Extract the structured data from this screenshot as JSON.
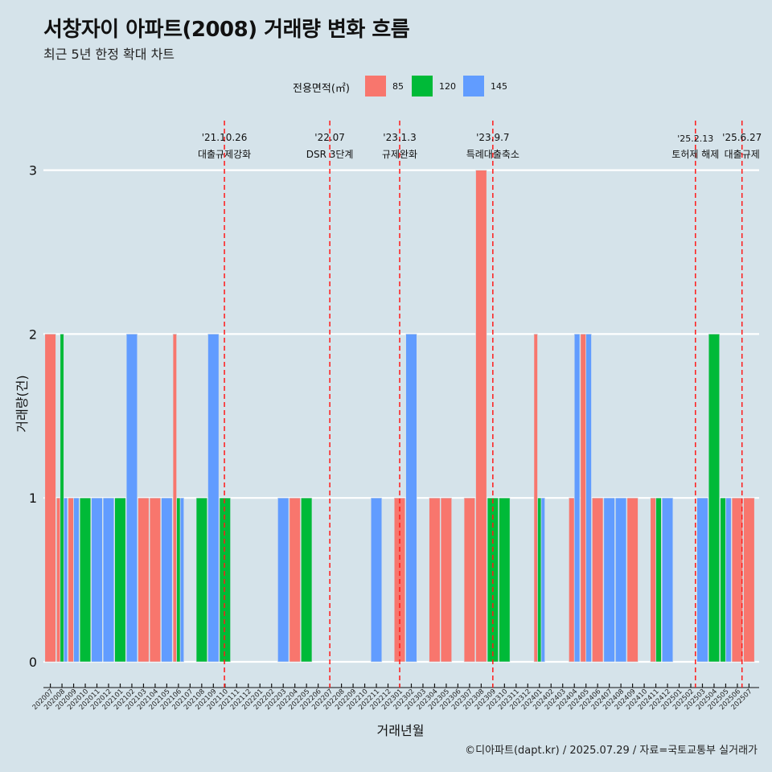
{
  "title": "서창자이 아파트(2008) 거래량 변화 흐름",
  "subtitle": "최근 5년 한정 확대 차트",
  "caption": "©디아파트(dapt.kr) / 2025.07.29 / 자료=국토교통부 실거래가",
  "legend": {
    "title": "전용면적(㎡)",
    "items": [
      {
        "label": "85",
        "color": "#f8766d"
      },
      {
        "label": "120",
        "color": "#00ba38"
      },
      {
        "label": "145",
        "color": "#619cff"
      }
    ]
  },
  "chart_data": {
    "type": "bar",
    "xlabel": "거래년월",
    "ylabel": "거래량(건)",
    "ylim": [
      0,
      3
    ],
    "yticks": [
      0,
      1,
      2,
      3
    ],
    "categories": [
      "202007",
      "202008",
      "202009",
      "202010",
      "202011",
      "202012",
      "202101",
      "202102",
      "202103",
      "202104",
      "202105",
      "202106",
      "202107",
      "202108",
      "202109",
      "202110",
      "202111",
      "202112",
      "202201",
      "202202",
      "202203",
      "202204",
      "202205",
      "202206",
      "202207",
      "202208",
      "202209",
      "202210",
      "202211",
      "202212",
      "202301",
      "202302",
      "202303",
      "202304",
      "202305",
      "202306",
      "202307",
      "202308",
      "202309",
      "202310",
      "202311",
      "202312",
      "202401",
      "202402",
      "202403",
      "202404",
      "202405",
      "202406",
      "202407",
      "202408",
      "202409",
      "202410",
      "202411",
      "202412",
      "202501",
      "202502",
      "202503",
      "202504",
      "202505",
      "202506",
      "202507"
    ],
    "bars": [
      {
        "month": "202007",
        "values": [
          2,
          0,
          0
        ]
      },
      {
        "month": "202008",
        "values": [
          1,
          2,
          1
        ]
      },
      {
        "month": "202009",
        "values": [
          1,
          0,
          1
        ]
      },
      {
        "month": "202010",
        "values": [
          0,
          1,
          0
        ]
      },
      {
        "month": "202011",
        "values": [
          0,
          0,
          1
        ]
      },
      {
        "month": "202012",
        "values": [
          0,
          0,
          1
        ]
      },
      {
        "month": "202101",
        "values": [
          0,
          1,
          0
        ]
      },
      {
        "month": "202102",
        "values": [
          0,
          0,
          2
        ]
      },
      {
        "month": "202103",
        "values": [
          1,
          0,
          0
        ]
      },
      {
        "month": "202104",
        "values": [
          1,
          0,
          0
        ]
      },
      {
        "month": "202105",
        "values": [
          0,
          0,
          1
        ]
      },
      {
        "month": "202106",
        "values": [
          2,
          1,
          1
        ]
      },
      {
        "month": "202108",
        "values": [
          0,
          1,
          0
        ]
      },
      {
        "month": "202109",
        "values": [
          0,
          0,
          2
        ]
      },
      {
        "month": "202110",
        "values": [
          0,
          1,
          0
        ]
      },
      {
        "month": "202203",
        "values": [
          0,
          0,
          1
        ]
      },
      {
        "month": "202204",
        "values": [
          1,
          0,
          0
        ]
      },
      {
        "month": "202205",
        "values": [
          0,
          1,
          0
        ]
      },
      {
        "month": "202211",
        "values": [
          0,
          0,
          1
        ]
      },
      {
        "month": "202301",
        "values": [
          1,
          0,
          0
        ]
      },
      {
        "month": "202302",
        "values": [
          0,
          0,
          2
        ]
      },
      {
        "month": "202304",
        "values": [
          1,
          0,
          0
        ]
      },
      {
        "month": "202305",
        "values": [
          1,
          0,
          0
        ]
      },
      {
        "month": "202307",
        "values": [
          1,
          0,
          0
        ]
      },
      {
        "month": "202308",
        "values": [
          3,
          0,
          0
        ]
      },
      {
        "month": "202309",
        "values": [
          0,
          1,
          0
        ]
      },
      {
        "month": "202310",
        "values": [
          0,
          1,
          0
        ]
      },
      {
        "month": "202401",
        "values": [
          2,
          1,
          1
        ]
      },
      {
        "month": "202404",
        "values": [
          1,
          0,
          2
        ]
      },
      {
        "month": "202405",
        "values": [
          2,
          0,
          2
        ]
      },
      {
        "month": "202406",
        "values": [
          1,
          0,
          0
        ]
      },
      {
        "month": "202407",
        "values": [
          0,
          0,
          1
        ]
      },
      {
        "month": "202408",
        "values": [
          0,
          0,
          1
        ]
      },
      {
        "month": "202409",
        "values": [
          1,
          0,
          0
        ]
      },
      {
        "month": "202411",
        "values": [
          1,
          1,
          0
        ]
      },
      {
        "month": "202412",
        "values": [
          0,
          0,
          1
        ]
      },
      {
        "month": "202503",
        "values": [
          0,
          0,
          1
        ]
      },
      {
        "month": "202504",
        "values": [
          0,
          2,
          0
        ]
      },
      {
        "month": "202505",
        "values": [
          0,
          1,
          1
        ]
      },
      {
        "month": "202506",
        "values": [
          1,
          0,
          0
        ]
      },
      {
        "month": "202507",
        "values": [
          1,
          0,
          0
        ]
      }
    ],
    "events": [
      {
        "date": "'21.10.26",
        "label": "대출규제강화",
        "month": "202110",
        "offset": -0.05
      },
      {
        "date": "'22.07",
        "label": "DSR 3단계",
        "month": "202207",
        "offset": 0
      },
      {
        "date": "'23.1.3",
        "label": "규제완화",
        "month": "202301",
        "offset": 0
      },
      {
        "date": "'23.9.7",
        "label": "특례대출축소",
        "month": "202309",
        "offset": 0
      },
      {
        "date": "'25.2.13",
        "label": "토허제 해제",
        "month": "202502",
        "offset": 0.4
      },
      {
        "date": "'25.6.27",
        "label": "대출규제",
        "month": "202506",
        "offset": 0.4
      }
    ]
  }
}
